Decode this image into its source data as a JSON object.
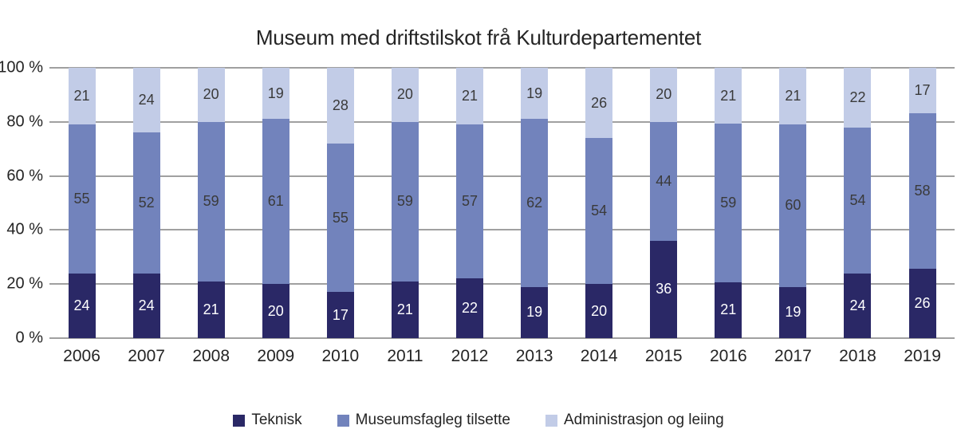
{
  "page": {
    "background": "#ffffff"
  },
  "chart_data": {
    "type": "bar",
    "stacked": true,
    "orientation": "vertical",
    "title": "Museum med driftstilskot frå Kulturdepartementet",
    "categories": [
      "2006",
      "2007",
      "2008",
      "2009",
      "2010",
      "2011",
      "2012",
      "2013",
      "2014",
      "2015",
      "2016",
      "2017",
      "2018",
      "2019"
    ],
    "series": [
      {
        "name": "Teknisk",
        "color": "#2a2866",
        "label_color": "#ffffff",
        "values": [
          24,
          24,
          21,
          20,
          17,
          21,
          22,
          19,
          20,
          36,
          21,
          19,
          24,
          26
        ]
      },
      {
        "name": "Museumsfagleg tilsette",
        "color": "#7283bc",
        "label_color": "#3a3a3a",
        "values": [
          55,
          52,
          59,
          61,
          55,
          59,
          57,
          62,
          54,
          44,
          59,
          60,
          54,
          58
        ]
      },
      {
        "name": "Administrasjon og leiing",
        "color": "#c2cce7",
        "label_color": "#3a3a3a",
        "values": [
          21,
          24,
          20,
          19,
          28,
          20,
          21,
          19,
          26,
          20,
          21,
          21,
          22,
          17
        ]
      }
    ],
    "y_axis": {
      "min": 0,
      "max": 100,
      "tick_values": [
        0,
        20,
        40,
        60,
        80,
        100
      ],
      "tick_labels": [
        "0 %",
        "20 %",
        "40 %",
        "60 %",
        "80 %",
        "100 %"
      ]
    },
    "grid": true,
    "gridline_color": "#a0a0a0",
    "legend_position": "bottom"
  }
}
